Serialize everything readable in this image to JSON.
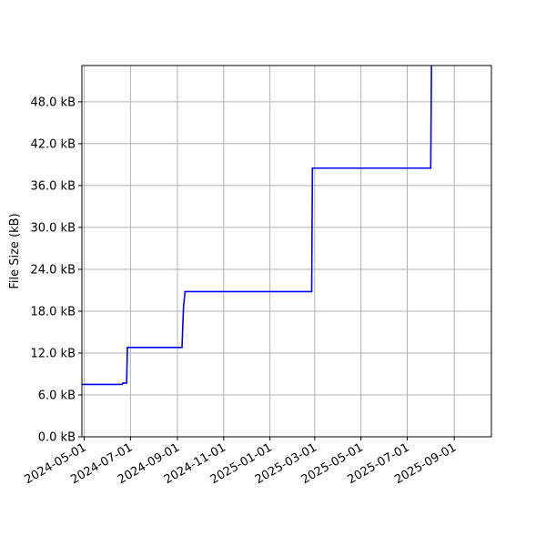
{
  "chart_data": {
    "type": "line",
    "title": "",
    "xlabel": "",
    "ylabel": "File Size (kB)",
    "xlim": [
      "2024-04-28",
      "2025-10-20"
    ],
    "ylim": [
      0,
      53.2
    ],
    "grid": true,
    "x_ticks": [
      "2024-05-01",
      "2024-07-01",
      "2024-09-01",
      "2024-11-01",
      "2025-01-01",
      "2025-03-01",
      "2025-05-01",
      "2025-07-01",
      "2025-09-01"
    ],
    "y_ticks": [
      0,
      6,
      12,
      18,
      24,
      30,
      36,
      42,
      48
    ],
    "y_tick_labels": [
      "0.0 kB",
      "6.0 kB",
      "12.0 kB",
      "18.0 kB",
      "24.0 kB",
      "30.0 kB",
      "36.0 kB",
      "42.0 kB",
      "48.0 kB"
    ],
    "series": [
      {
        "color": "#0000ff",
        "points": [
          {
            "x": "2024-04-28",
            "y": 7.5
          },
          {
            "x": "2024-06-20",
            "y": 7.5
          },
          {
            "x": "2024-06-21",
            "y": 7.7
          },
          {
            "x": "2024-06-26",
            "y": 7.7
          },
          {
            "x": "2024-06-27",
            "y": 12.8
          },
          {
            "x": "2024-09-07",
            "y": 12.8
          },
          {
            "x": "2024-09-09",
            "y": 18.6
          },
          {
            "x": "2024-09-11",
            "y": 20.8
          },
          {
            "x": "2025-02-25",
            "y": 20.8
          },
          {
            "x": "2025-02-26",
            "y": 38.5
          },
          {
            "x": "2025-08-01",
            "y": 38.5
          },
          {
            "x": "2025-08-02",
            "y": 53.2
          }
        ]
      }
    ]
  }
}
